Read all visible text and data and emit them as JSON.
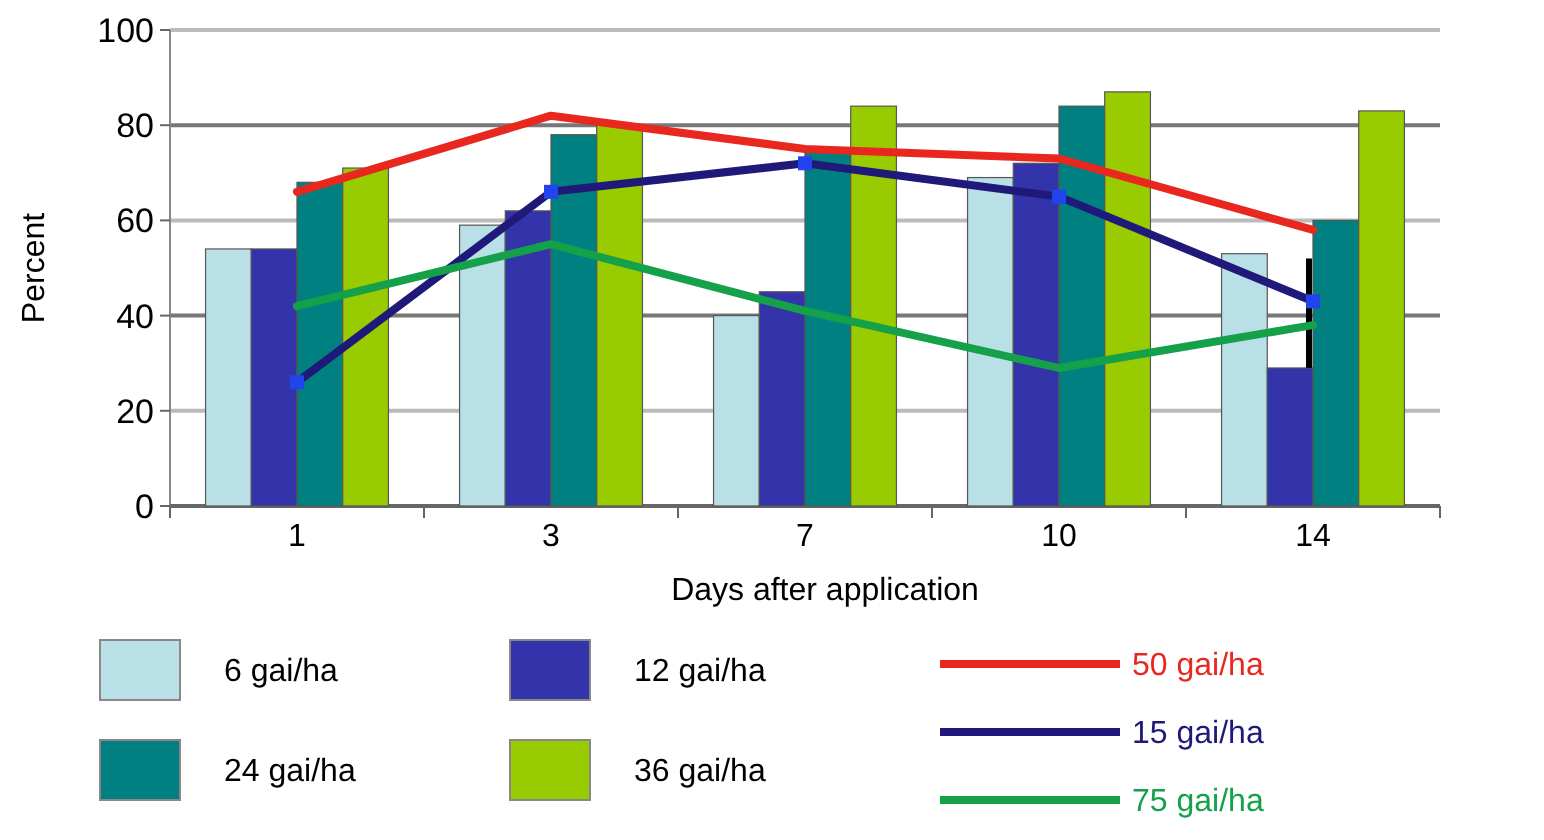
{
  "chart_data": {
    "type": "bar",
    "xlabel": "Days after application",
    "ylabel": "Percent",
    "categories": [
      "1",
      "3",
      "7",
      "10",
      "14"
    ],
    "ylim": [
      0,
      100
    ],
    "yticks": [
      0,
      20,
      40,
      60,
      80,
      100
    ],
    "grid": "y",
    "legend": "bottom",
    "series": [
      {
        "name": "6 gai/ha",
        "color": "#b9e0e6",
        "values": [
          54,
          59,
          40,
          69,
          53
        ]
      },
      {
        "name": "12 gai/ha",
        "color": "#3333aa",
        "values": [
          54,
          62,
          45,
          72,
          29
        ],
        "errors": [
          null,
          null,
          null,
          null,
          [
            29,
            52
          ]
        ]
      },
      {
        "name": "24 gai/ha",
        "color": "#008080",
        "values": [
          68,
          78,
          75,
          84,
          60
        ]
      },
      {
        "name": "36 gai/ha",
        "color": "#99cc00",
        "values": [
          71,
          80,
          84,
          87,
          83
        ]
      },
      {
        "name": "50 gai/ha",
        "type": "line",
        "color": "#e8281e",
        "values": [
          66,
          82,
          75,
          73,
          58
        ],
        "line_style": "solid",
        "marker": "none"
      },
      {
        "name": "15 gai/ha",
        "type": "line",
        "color": "#1f1a7a",
        "values": [
          26,
          66,
          72,
          65,
          43
        ],
        "line_style": "solid",
        "marker": "square"
      },
      {
        "name": "75 gai/ha",
        "type": "line",
        "color": "#15a04a",
        "values": [
          42,
          55,
          41,
          29,
          38
        ],
        "line_style": "solid",
        "marker": "none"
      }
    ]
  }
}
